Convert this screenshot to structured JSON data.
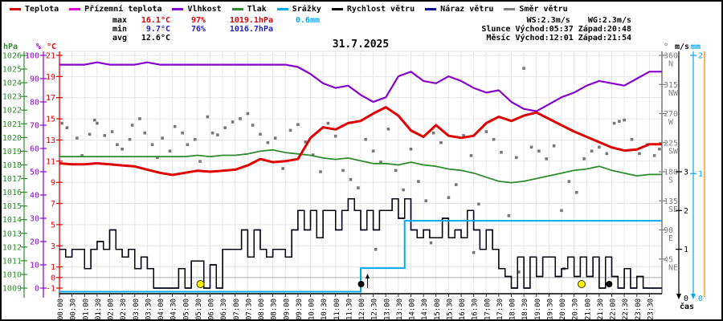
{
  "frame": {
    "title": "31.7.2025",
    "xlabel": "čas"
  },
  "legend": {
    "items": [
      {
        "label": "Teplota",
        "color": "#e00000"
      },
      {
        "label": "Přízemní teplota",
        "color": "#e000e0"
      },
      {
        "label": "Vlhkost",
        "color": "#8800cc"
      },
      {
        "label": "Tlak",
        "color": "#2e8b2e"
      },
      {
        "label": "Srážky",
        "color": "#00aaee"
      },
      {
        "label": "Rychlost větru",
        "color": "#000000"
      },
      {
        "label": "Náraz větru",
        "color": "#000099"
      },
      {
        "label": "Směr větru",
        "color": "#808080"
      }
    ]
  },
  "stats": {
    "max": {
      "label": "max",
      "temp": "16.1°C",
      "humidity": "97%",
      "pressure": "1019.1hPa",
      "precip": "0.6mm"
    },
    "min": {
      "label": "min",
      "temp": "9.7°C",
      "humidity": "76%",
      "pressure": "1016.7hPa"
    },
    "avg": {
      "label": "avg",
      "temp": "12.6°C"
    },
    "wind_summary": {
      "ws": "WS:2.3m/s",
      "wg": "WG:2.3m/s"
    },
    "sun": {
      "label": "Slunce",
      "rise": "Východ:05:37",
      "set": "Západ:20:48"
    },
    "moon": {
      "label": "Měsíc",
      "rise": "Východ:12:01",
      "set": "Západ:21:54"
    }
  },
  "chart_data": {
    "type": "line",
    "title": "31.7.2025",
    "xlabel": "čas",
    "grid": true,
    "axes": {
      "temperature": {
        "header": "°C",
        "color": "#e00000",
        "range": [
          -1,
          21
        ],
        "ticks": [
          21,
          19,
          17,
          15,
          13,
          11,
          9,
          7,
          5,
          3,
          1,
          0,
          -1
        ]
      },
      "humidity": {
        "header": "%",
        "color": "#8800cc",
        "range": [
          0,
          100
        ],
        "ticks": [
          100,
          90,
          80,
          70,
          60,
          50,
          40,
          30,
          20,
          10,
          0
        ]
      },
      "pressure": {
        "header": "hPa",
        "color": "#2e8b2e",
        "range": [
          1009,
          1026
        ],
        "ticks": [
          1026,
          1025,
          1024,
          1023,
          1022,
          1021,
          1020,
          1019,
          1018,
          1017,
          1016,
          1015,
          1014,
          1013,
          1012,
          1011,
          1010,
          1009
        ]
      },
      "direction": {
        "header": "°",
        "color": "#808080",
        "range": [
          0,
          360
        ],
        "ticks": [
          {
            "deg": 360,
            "dir": "N"
          },
          {
            "deg": 315,
            "dir": "NW"
          },
          {
            "deg": 270,
            "dir": "W"
          },
          {
            "deg": 225,
            "dir": "SW"
          },
          {
            "deg": 180,
            "dir": "S"
          },
          {
            "deg": 135,
            "dir": "SE"
          },
          {
            "deg": 90,
            "dir": "E"
          },
          {
            "deg": 45,
            "dir": "NE"
          }
        ]
      },
      "wind": {
        "header": "m/s",
        "color": "#000000",
        "range": [
          0,
          6
        ],
        "ticks": [
          3,
          2,
          1,
          0
        ]
      },
      "precip": {
        "header": "mm",
        "color": "#00aaee",
        "range": [
          0,
          2
        ],
        "ticks": [
          2,
          1,
          0
        ]
      },
      "time": {
        "labels": [
          "00:00",
          "00:30",
          "01:00",
          "01:30",
          "02:00",
          "02:30",
          "03:00",
          "03:30",
          "04:00",
          "04:30",
          "05:00",
          "05:30",
          "06:00",
          "06:30",
          "07:00",
          "07:30",
          "08:00",
          "08:30",
          "09:00",
          "09:30",
          "10:00",
          "10:30",
          "11:00",
          "11:30",
          "12:00",
          "12:30",
          "13:00",
          "13:30",
          "14:00",
          "14:30",
          "15:00",
          "15:30",
          "16:00",
          "16:30",
          "17:00",
          "17:30",
          "18:00",
          "18:30",
          "19:00",
          "19:30",
          "20:00",
          "20:30",
          "21:00",
          "21:30",
          "22:00",
          "22:30",
          "23:00",
          "23:30"
        ]
      }
    },
    "series": {
      "temperature": {
        "name": "Teplota",
        "color": "#e00000",
        "step_hours": 0.5,
        "values": [
          10.8,
          10.7,
          10.7,
          10.8,
          10.7,
          10.6,
          10.5,
          10.2,
          9.9,
          9.7,
          9.9,
          10.1,
          10.0,
          10.1,
          10.2,
          10.6,
          11.2,
          10.9,
          11.0,
          11.2,
          13.2,
          14.2,
          14.0,
          14.6,
          14.8,
          15.5,
          16.1,
          15.3,
          13.9,
          13.3,
          14.4,
          13.4,
          13.2,
          13.4,
          14.6,
          15.2,
          14.8,
          15.3,
          15.6,
          15.0,
          14.4,
          13.8,
          13.3,
          12.8,
          12.3,
          12.0,
          12.1,
          12.6
        ]
      },
      "humidity": {
        "name": "Vlhkost",
        "color": "#8800cc",
        "step_hours": 0.5,
        "values": [
          96,
          96,
          96,
          97,
          96,
          96,
          96,
          97,
          96,
          96,
          96,
          96,
          96,
          96,
          96,
          96,
          96,
          96,
          96,
          95,
          92,
          88,
          86,
          87,
          83,
          80,
          82,
          91,
          93,
          89,
          88,
          91,
          89,
          86,
          84,
          85,
          80,
          77,
          76,
          79,
          82,
          84,
          87,
          89,
          88,
          87,
          90,
          93
        ]
      },
      "pressure": {
        "name": "Tlak",
        "color": "#2e8b2e",
        "step_hours": 0.5,
        "values": [
          1018.6,
          1018.6,
          1018.6,
          1018.6,
          1018.6,
          1018.6,
          1018.6,
          1018.6,
          1018.6,
          1018.6,
          1018.6,
          1018.7,
          1018.6,
          1018.7,
          1018.7,
          1018.8,
          1019.0,
          1019.1,
          1018.9,
          1018.8,
          1018.7,
          1018.5,
          1018.4,
          1018.5,
          1018.3,
          1018.1,
          1018.1,
          1018.0,
          1018.2,
          1018.0,
          1017.9,
          1017.7,
          1017.6,
          1017.4,
          1017.1,
          1016.8,
          1016.7,
          1016.8,
          1017.0,
          1017.2,
          1017.4,
          1017.6,
          1017.7,
          1017.9,
          1017.6,
          1017.4,
          1017.2,
          1017.3
        ]
      },
      "wind_speed": {
        "name": "Rychlost větru",
        "color": "#000000",
        "step_hours": 0.25,
        "values": [
          1,
          0.8,
          1,
          1,
          0.5,
          1,
          1.2,
          1,
          1.5,
          1,
          0.8,
          1,
          0.5,
          0.8,
          0.5,
          0,
          0,
          0,
          0,
          0.5,
          0,
          0.7,
          0.7,
          0,
          0.6,
          0,
          1,
          1,
          1,
          1.5,
          0.8,
          1.5,
          1,
          0.8,
          1,
          1,
          0.8,
          1.5,
          2,
          1.5,
          2,
          1.3,
          2,
          2,
          1.5,
          2,
          2.3,
          2,
          1.5,
          2,
          1.5,
          2,
          2,
          2.3,
          1.8,
          2.3,
          1.5,
          1.3,
          1.5,
          1.3,
          1.3,
          1.8,
          1.3,
          1.5,
          1.3,
          2,
          1.5,
          1,
          1.5,
          1,
          0.5,
          0.3,
          0,
          0.8,
          0,
          0.8,
          0.3,
          0.8,
          0.8,
          0.3,
          0.5,
          0.8,
          0.3,
          0.8,
          0.3,
          0.8,
          0,
          0.8,
          0.3,
          0,
          0.5,
          0,
          0.3,
          0,
          0,
          0
        ]
      },
      "wind_gust": {
        "name": "Náraz větru",
        "color": "#000099",
        "step_hours": 0.25,
        "values": [
          1,
          0.8,
          1,
          1,
          0.5,
          1,
          1.2,
          1,
          1.5,
          1,
          0.8,
          1,
          0.5,
          0.8,
          0.5,
          0,
          0,
          0,
          0,
          0.5,
          0,
          0.7,
          0.7,
          0,
          0.6,
          0,
          1,
          1,
          1,
          1.5,
          0.8,
          1.5,
          1,
          0.8,
          1,
          1,
          0.8,
          1.5,
          2,
          1.5,
          2,
          1.3,
          2,
          2,
          1.5,
          2,
          2.3,
          2,
          1.5,
          2,
          1.5,
          2,
          2,
          2.3,
          1.8,
          2.3,
          1.5,
          1.3,
          1.5,
          1.3,
          1.3,
          1.8,
          1.3,
          1.5,
          1.3,
          2,
          1.5,
          1,
          1.5,
          1,
          0.5,
          0.3,
          0,
          0.8,
          0,
          0.8,
          0.3,
          0.8,
          0.8,
          0.3,
          0.5,
          0.8,
          0.3,
          0.8,
          0.3,
          0.8,
          0,
          0.8,
          0.3,
          0,
          0.5,
          0,
          0.3,
          0,
          0,
          0
        ]
      },
      "precip_cumulative": {
        "name": "Srážky",
        "color": "#00aaee",
        "step_hours": 0.25,
        "values": [
          0,
          0,
          0,
          0,
          0,
          0,
          0,
          0,
          0,
          0,
          0,
          0,
          0,
          0,
          0,
          0,
          0,
          0,
          0,
          0,
          0,
          0,
          0,
          0,
          0,
          0,
          0,
          0,
          0,
          0,
          0,
          0,
          0,
          0,
          0,
          0,
          0,
          0,
          0,
          0,
          0,
          0,
          0,
          0,
          0,
          0,
          0,
          0,
          0.2,
          0.2,
          0.2,
          0.2,
          0.2,
          0.2,
          0.2,
          0.6,
          0.6,
          0.6,
          0.6,
          0.6,
          0.6,
          0.6,
          0.6,
          0.6,
          0.6,
          0.6,
          0.6,
          0.6,
          0.6,
          0.6,
          0.6,
          0.6,
          0.6,
          0.6,
          0.6,
          0.6,
          0.6,
          0.6,
          0.6,
          0.6,
          0.6,
          0.6,
          0.6,
          0.6,
          0.6,
          0.6,
          0.6,
          0.6,
          0.6,
          0.6,
          0.6,
          0.6,
          0.6,
          0.6,
          0.6,
          0.6
        ]
      },
      "wind_direction": {
        "name": "Směr větru",
        "color": "#787878",
        "points": [
          [
            0.1,
            255
          ],
          [
            0.3,
            248
          ],
          [
            0.7,
            232
          ],
          [
            0.9,
            205
          ],
          [
            1.2,
            238
          ],
          [
            1.4,
            260
          ],
          [
            1.5,
            255
          ],
          [
            1.8,
            236
          ],
          [
            2.1,
            242
          ],
          [
            2.3,
            222
          ],
          [
            2.5,
            215
          ],
          [
            2.8,
            230
          ],
          [
            2.9,
            252
          ],
          [
            3.2,
            262
          ],
          [
            3.4,
            240
          ],
          [
            3.7,
            222
          ],
          [
            3.9,
            202
          ],
          [
            4.1,
            232
          ],
          [
            4.4,
            212
          ],
          [
            4.6,
            250
          ],
          [
            4.9,
            240
          ],
          [
            5.1,
            222
          ],
          [
            5.4,
            230
          ],
          [
            5.6,
            196
          ],
          [
            5.9,
            265
          ],
          [
            6.1,
            240
          ],
          [
            6.3,
            237
          ],
          [
            6.6,
            248
          ],
          [
            6.9,
            257
          ],
          [
            7.2,
            262
          ],
          [
            7.5,
            270
          ],
          [
            7.7,
            252
          ],
          [
            8.0,
            238
          ],
          [
            8.3,
            225
          ],
          [
            8.6,
            232
          ],
          [
            8.9,
            185
          ],
          [
            9.2,
            244
          ],
          [
            9.5,
            253
          ],
          [
            9.8,
            226
          ],
          [
            10.1,
            206
          ],
          [
            10.4,
            180
          ],
          [
            10.7,
            255
          ],
          [
            11.0,
            235
          ],
          [
            11.3,
            182
          ],
          [
            11.6,
            168
          ],
          [
            11.9,
            155
          ],
          [
            12.2,
            230
          ],
          [
            12.5,
            212
          ],
          [
            12.6,
            60
          ],
          [
            12.8,
            195
          ],
          [
            13.1,
            246
          ],
          [
            13.4,
            182
          ],
          [
            13.7,
            152
          ],
          [
            14.0,
            215
          ],
          [
            14.3,
            165
          ],
          [
            14.6,
            135
          ],
          [
            14.8,
            70
          ],
          [
            14.9,
            240
          ],
          [
            15.2,
            225
          ],
          [
            15.5,
            140
          ],
          [
            15.8,
            160
          ],
          [
            16.1,
            236
          ],
          [
            16.4,
            205
          ],
          [
            16.5,
            55
          ],
          [
            16.7,
            130
          ],
          [
            17.0,
            242
          ],
          [
            17.3,
            230
          ],
          [
            17.6,
            210
          ],
          [
            17.9,
            112
          ],
          [
            18.2,
            202
          ],
          [
            18.3,
            25
          ],
          [
            18.5,
            340
          ],
          [
            18.8,
            218
          ],
          [
            19.1,
            212
          ],
          [
            19.4,
            200
          ],
          [
            19.7,
            220
          ],
          [
            20.0,
            120
          ],
          [
            20.1,
            30
          ],
          [
            20.3,
            165
          ],
          [
            20.6,
            148
          ],
          [
            20.9,
            200
          ],
          [
            21.2,
            212
          ],
          [
            21.5,
            218
          ],
          [
            21.8,
            208
          ],
          [
            22.1,
            255
          ],
          [
            22.3,
            258
          ],
          [
            22.5,
            260
          ],
          [
            22.8,
            230
          ],
          [
            23.1,
            208
          ],
          [
            23.4,
            222
          ],
          [
            23.7,
            205
          ],
          [
            23.9,
            215
          ]
        ]
      }
    },
    "markers": {
      "sunrise": "05:37",
      "sunset": "20:48",
      "moonrise": "12:01",
      "moonset": "21:54",
      "sun_color": "#ffee00",
      "moon_color": "#000000"
    }
  }
}
